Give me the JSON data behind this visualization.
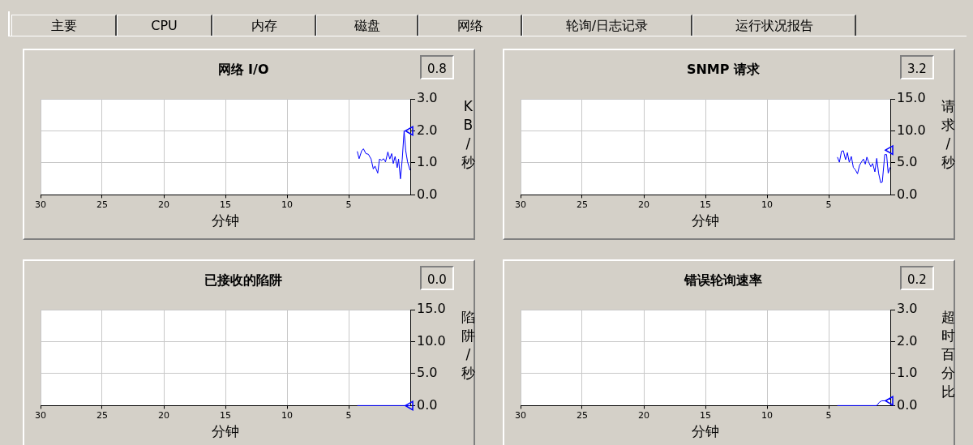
{
  "chart_data": [
    {
      "type": "other",
      "annotations": [
        "主要",
        "CPU",
        "内存",
        "磁盘",
        "网络",
        "轮询/日志记录",
        "运行状况报告"
      ]
    },
    {
      "type": "line",
      "title": "网络 I/O",
      "xlabel": "分钟",
      "ylabel": "KB/秒",
      "annotations": [
        "0.8"
      ],
      "grid": true,
      "xlim": [
        30,
        0
      ],
      "xticks": [
        30,
        25,
        20,
        15,
        10,
        5
      ],
      "ylim": [
        0,
        3
      ],
      "yticks": [
        {
          "value": 0,
          "label": "0.0"
        },
        {
          "value": 1,
          "label": "1.0"
        },
        {
          "value": 2,
          "label": "2.0"
        },
        {
          "value": 3,
          "label": "3.0"
        }
      ],
      "series": [
        {
          "color": "#0000ff",
          "x": [
            4.3,
            4.15,
            3.94,
            3.8,
            3.6,
            3.4,
            3.18,
            3.0,
            2.86,
            2.64,
            2.5,
            2.33,
            2.16,
            2.01,
            1.82,
            1.66,
            1.51,
            1.38,
            1.23,
            1.06,
            0.95,
            0.8,
            0.65,
            0.5,
            0.37,
            0.22,
            0.02
          ],
          "values": [
            1.36,
            1.13,
            1.38,
            1.44,
            1.29,
            1.27,
            1.12,
            0.81,
            0.9,
            0.68,
            1.12,
            1.08,
            1.13,
            1.03,
            1.34,
            1.12,
            1.29,
            0.98,
            1.2,
            0.85,
            1.12,
            0.5,
            1.12,
            2.0,
            1.38,
            1.03,
            0.77
          ]
        },
        {
          "type": "scatter",
          "marker": "triangle",
          "color": "#0000ff",
          "x": [
            0
          ],
          "values": [
            2.0
          ]
        }
      ]
    },
    {
      "type": "line",
      "title": "SNMP 请求",
      "xlabel": "分钟",
      "ylabel": "请求/秒",
      "annotations": [
        "3.2"
      ],
      "grid": true,
      "xlim": [
        30,
        0
      ],
      "xticks": [
        30,
        25,
        20,
        15,
        10,
        5
      ],
      "ylim": [
        0,
        15
      ],
      "yticks": [
        {
          "value": 0,
          "label": "0.0"
        },
        {
          "value": 5,
          "label": "5.0"
        },
        {
          "value": 10,
          "label": "10.0"
        },
        {
          "value": 15,
          "label": "15.0"
        }
      ],
      "series": [
        {
          "color": "#0000ff",
          "x": [
            4.29,
            4.13,
            3.96,
            3.81,
            3.63,
            3.48,
            3.33,
            3.16,
            3.0,
            2.83,
            2.66,
            2.5,
            2.35,
            2.18,
            2.03,
            1.9,
            1.75,
            1.58,
            1.43,
            1.25,
            1.1,
            0.95,
            0.78,
            0.65,
            0.45,
            0.3,
            0.17,
            0.02
          ],
          "values": [
            5.9,
            5.1,
            6.8,
            6.9,
            5.5,
            6.6,
            5.1,
            6.0,
            4.3,
            3.9,
            3.3,
            4.6,
            5.1,
            5.6,
            4.8,
            5.9,
            5.1,
            4.4,
            4.9,
            3.6,
            5.7,
            3.4,
            1.9,
            2.0,
            6.3,
            6.3,
            3.4,
            4.3
          ]
        },
        {
          "type": "scatter",
          "marker": "triangle",
          "color": "#0000ff",
          "x": [
            0
          ],
          "values": [
            7.0
          ]
        }
      ]
    },
    {
      "type": "line",
      "title": "已接收的陷阱",
      "xlabel": "分钟",
      "ylabel": "陷阱/秒",
      "annotations": [
        "0.0"
      ],
      "grid": true,
      "xlim": [
        30,
        0
      ],
      "xticks": [
        30,
        25,
        20,
        15,
        10,
        5
      ],
      "ylim": [
        0,
        15
      ],
      "yticks": [
        {
          "value": 0,
          "label": "0.0"
        },
        {
          "value": 5,
          "label": "5.0"
        },
        {
          "value": 10,
          "label": "10.0"
        },
        {
          "value": 15,
          "label": "15.0"
        }
      ],
      "series": [
        {
          "color": "#0000ff",
          "x": [
            4.3,
            0
          ],
          "values": [
            0,
            0
          ]
        },
        {
          "type": "scatter",
          "marker": "triangle",
          "color": "#0000ff",
          "x": [
            0
          ],
          "values": [
            0
          ]
        }
      ]
    },
    {
      "type": "line",
      "title": "错误轮询速率",
      "xlabel": "分钟",
      "ylabel": "超时百分比",
      "annotations": [
        "0.2"
      ],
      "grid": true,
      "xlim": [
        30,
        0
      ],
      "xticks": [
        30,
        25,
        20,
        15,
        10,
        5
      ],
      "ylim": [
        0,
        3
      ],
      "yticks": [
        {
          "value": 0,
          "label": "0.0"
        },
        {
          "value": 1,
          "label": "1.0"
        },
        {
          "value": 2,
          "label": "2.0"
        },
        {
          "value": 3,
          "label": "3.0"
        }
      ],
      "series": [
        {
          "color": "#0000ff",
          "x": [
            4.3,
            1.1,
            0.9,
            0.7,
            0.3,
            0.2,
            0
          ],
          "values": [
            0,
            0,
            0.1,
            0.15,
            0.15,
            0.2,
            0.2
          ]
        },
        {
          "type": "scatter",
          "marker": "triangle",
          "color": "#0000ff",
          "x": [
            0
          ],
          "values": [
            0.15
          ]
        }
      ]
    }
  ]
}
